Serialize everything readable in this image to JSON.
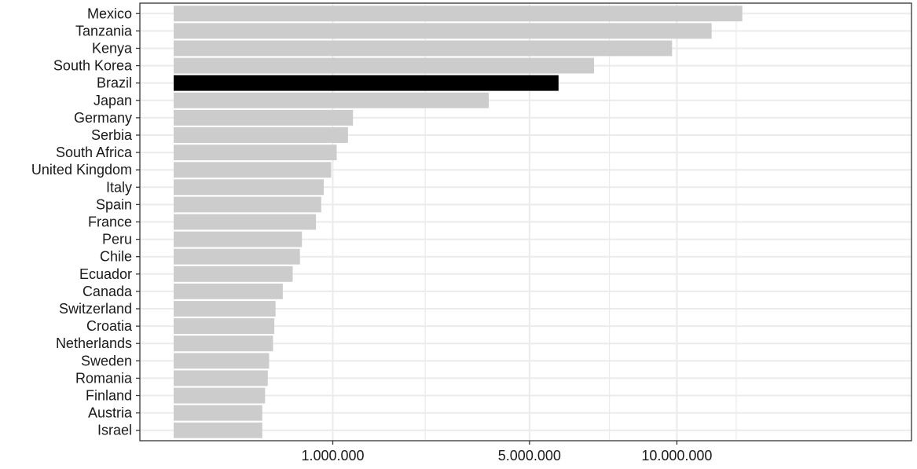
{
  "chart_data": {
    "type": "bar",
    "orientation": "horizontal",
    "title": "",
    "xlabel": "",
    "ylabel": "",
    "x_scale": "sqrt",
    "xlim": [
      0,
      21500000
    ],
    "x_ticks": [
      1000000,
      5000000,
      10000000
    ],
    "x_tick_labels": [
      "1.000.000",
      "5.000.000",
      "10.000.000"
    ],
    "x_minor_ticks": [
      2500000,
      7500000,
      12500000
    ],
    "grid": true,
    "legend": "none",
    "categories": [
      "Mexico",
      "Tanzania",
      "Kenya",
      "South Korea",
      "Brazil",
      "Japan",
      "Germany",
      "Serbia",
      "South Africa",
      "United Kingdom",
      "Italy",
      "Spain",
      "France",
      "Peru",
      "Chile",
      "Ecuador",
      "Canada",
      "Switzerland",
      "Croatia",
      "Netherlands",
      "Sweden",
      "Romania",
      "Finland",
      "Austria",
      "Israel"
    ],
    "values": [
      12770000,
      11430000,
      9810000,
      6980000,
      5850000,
      3920000,
      1270000,
      1200000,
      1050000,
      980000,
      890000,
      860000,
      800000,
      650000,
      630000,
      560000,
      470000,
      410000,
      400000,
      390000,
      360000,
      350000,
      330000,
      310000,
      310000
    ],
    "highlight": "Brazil",
    "colors": {
      "bar": "#cccccc",
      "highlight": "#000000",
      "grid": "#ebebeb",
      "panel_border": "#333333",
      "text": "#1a1a1a"
    }
  }
}
